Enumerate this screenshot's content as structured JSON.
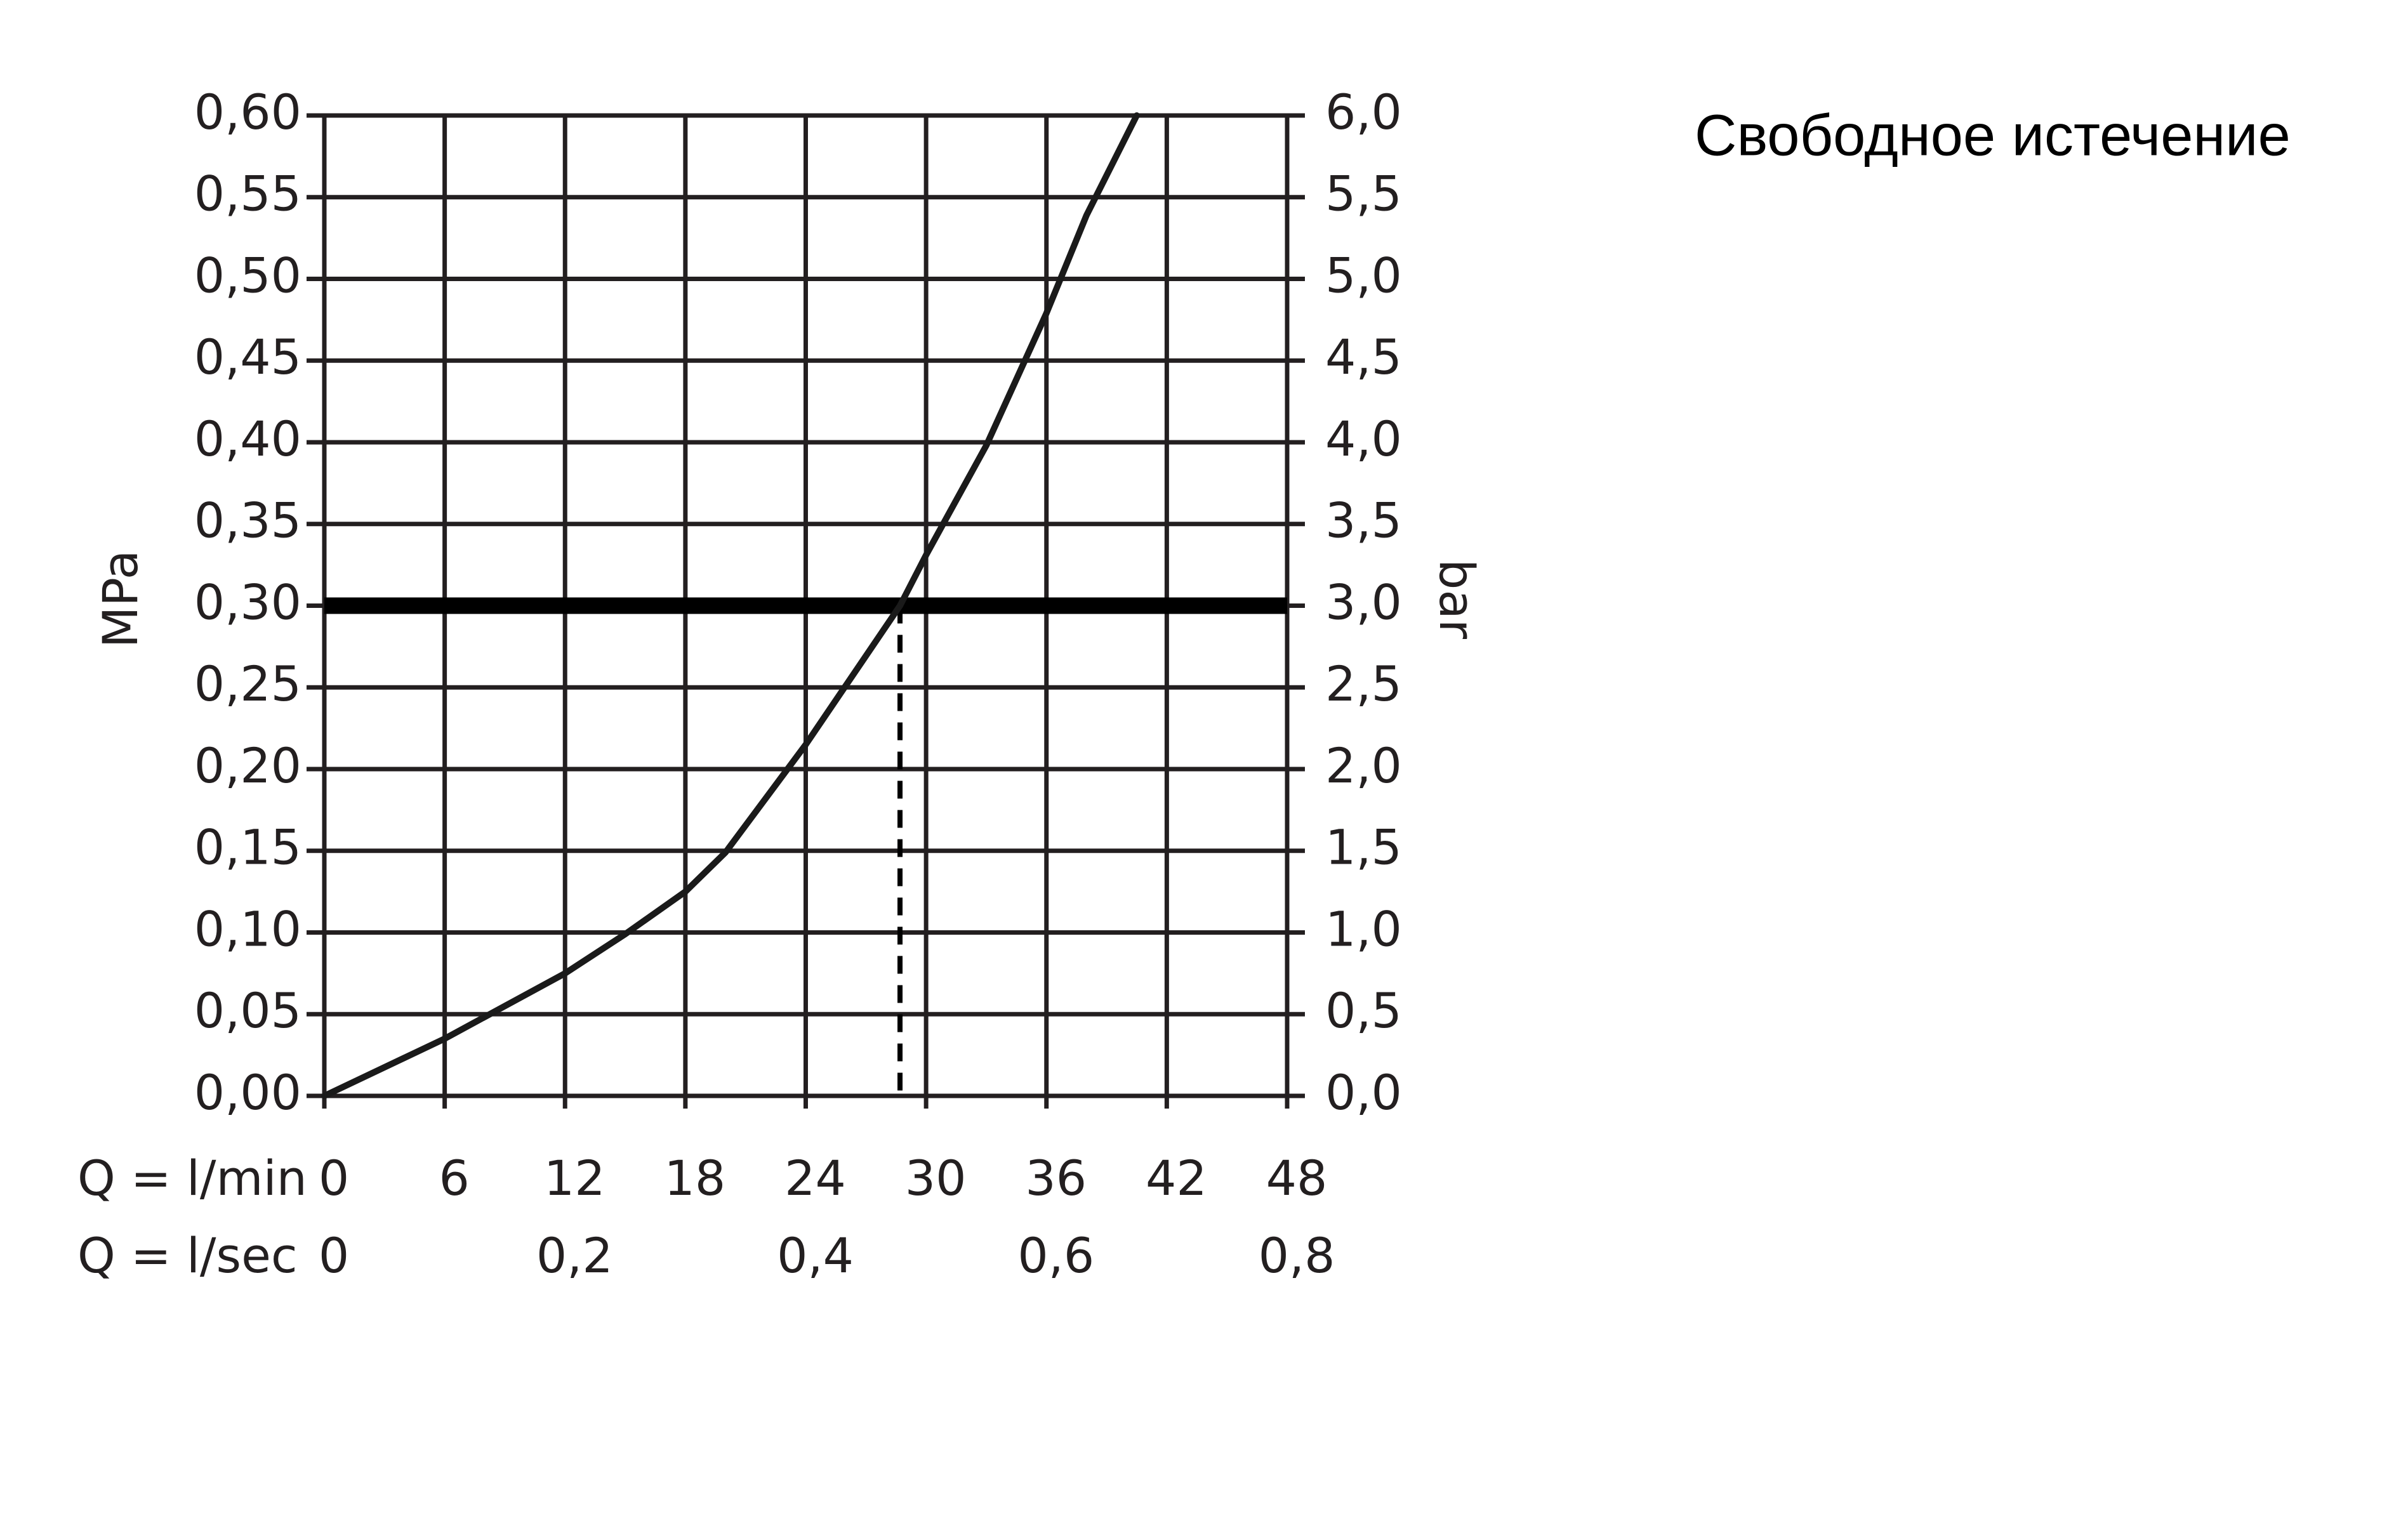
{
  "chart_data": {
    "type": "line",
    "title": "Свободное истечение",
    "x_label": "Q = l/min",
    "x2_label": "Q = l/sec",
    "y_label": "MPa",
    "y2_label": "bar",
    "x": [
      0,
      6,
      12,
      15,
      18,
      20,
      24,
      28.7,
      30,
      33,
      36,
      38,
      40.5
    ],
    "values": [
      0,
      0.035,
      0.075,
      0.099,
      0.125,
      0.149,
      0.215,
      0.3,
      0.331,
      0.398,
      0.479,
      0.539,
      0.6
    ],
    "color": "#1a1a1a",
    "reference_y": 0.3,
    "reference_x": 28.7,
    "xlim": [
      0,
      48
    ],
    "xticks": [
      0,
      6,
      12,
      18,
      24,
      30,
      36,
      42,
      48
    ],
    "x2lim": [
      0,
      0.8
    ],
    "x2ticks": [
      0,
      {
        "value": 0.2,
        "label": "0,2"
      },
      {
        "value": 0.4,
        "label": "0,4"
      },
      {
        "value": 0.6,
        "label": "0,6"
      },
      {
        "value": 0.8,
        "label": "0,8"
      }
    ],
    "ylim": [
      0,
      0.6
    ],
    "yticks": [
      {
        "value": 0,
        "label": "0,00"
      },
      {
        "value": 0.05,
        "label": "0,05"
      },
      {
        "value": 0.1,
        "label": "0,10"
      },
      {
        "value": 0.15,
        "label": "0,15"
      },
      {
        "value": 0.2,
        "label": "0,20"
      },
      {
        "value": 0.25,
        "label": "0,25"
      },
      {
        "value": 0.3,
        "label": "0,30"
      },
      {
        "value": 0.35,
        "label": "0,35"
      },
      {
        "value": 0.4,
        "label": "0,40"
      },
      {
        "value": 0.45,
        "label": "0,45"
      },
      {
        "value": 0.5,
        "label": "0,50"
      },
      {
        "value": 0.55,
        "label": "0,55"
      },
      {
        "value": 0.6,
        "label": "0,60"
      }
    ],
    "y2lim": [
      0,
      6
    ],
    "y2ticks": [
      {
        "value": 0,
        "label": "0,0"
      },
      {
        "value": 0.5,
        "label": "0,5"
      },
      {
        "value": 1,
        "label": "1,0"
      },
      {
        "value": 1.5,
        "label": "1,5"
      },
      {
        "value": 2,
        "label": "2,0"
      },
      {
        "value": 2.5,
        "label": "2,5"
      },
      {
        "value": 3,
        "label": "3,0"
      },
      {
        "value": 3.5,
        "label": "3,5"
      },
      {
        "value": 4,
        "label": "4,0"
      },
      {
        "value": 4.5,
        "label": "4,5"
      },
      {
        "value": 5,
        "label": "5,0"
      },
      {
        "value": 5.5,
        "label": "5,5"
      },
      {
        "value": 6,
        "label": "6,0"
      }
    ],
    "grid": true
  }
}
